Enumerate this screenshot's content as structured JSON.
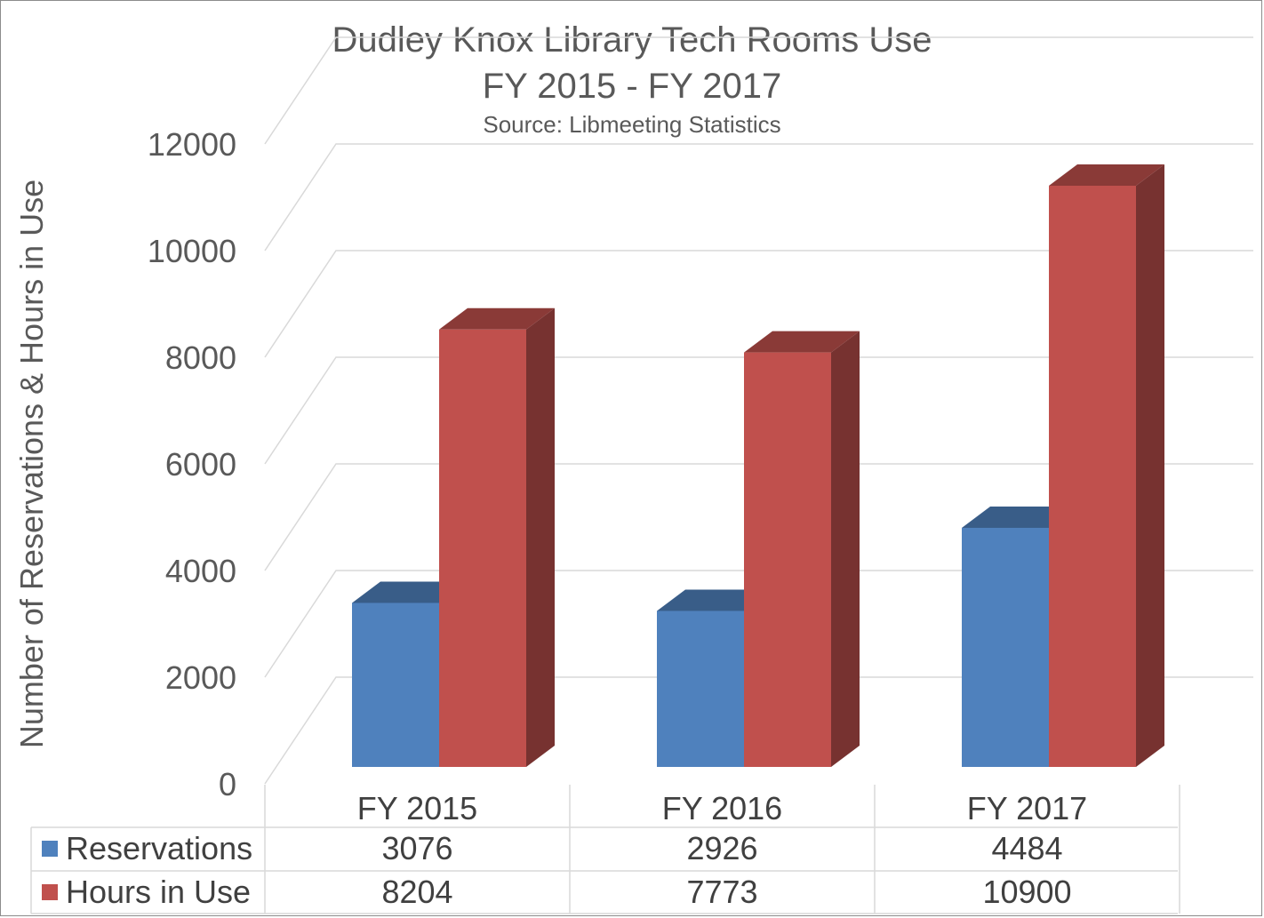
{
  "chart_data": {
    "type": "bar",
    "title": "Dudley Knox Library Tech Rooms Use",
    "subtitle": "FY 2015 - FY 2017",
    "source": "Source: Libmeeting Statistics",
    "xlabel": "",
    "ylabel": "Number of Reservations & Hours in Use",
    "ylim": [
      0,
      12000
    ],
    "yticks": [
      "0",
      "2000",
      "4000",
      "6000",
      "8000",
      "10000",
      "12000"
    ],
    "categories": [
      "FY 2015",
      "FY 2016",
      "FY 2017"
    ],
    "series": [
      {
        "name": "Reservations",
        "values": [
          3076,
          2926,
          4484
        ],
        "color": "#4f81bd"
      },
      {
        "name": "Hours in Use",
        "values": [
          8204,
          7773,
          10900
        ],
        "color": "#c0504d"
      }
    ],
    "grid": true,
    "style": "3d-clustered-column",
    "legend": "data-table-below"
  }
}
